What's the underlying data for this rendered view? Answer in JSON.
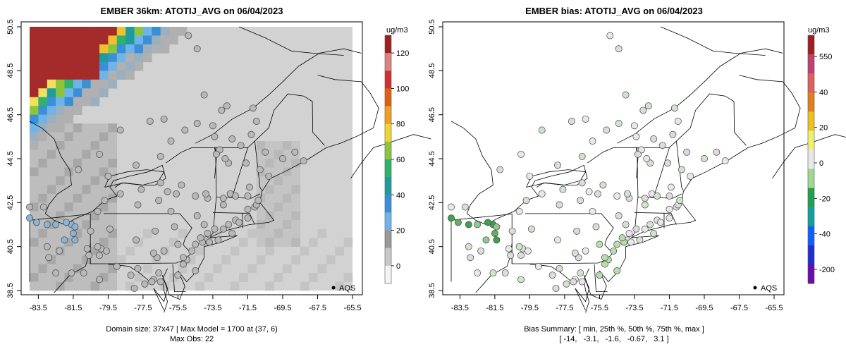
{
  "chart_data": [
    {
      "type": "heatmap",
      "title": "EMBER 36km: ATOTIJ_AVG on 06/04/2023",
      "x_ticks": [
        "-83.5",
        "-81.5",
        "-79.5",
        "-77.5",
        "-75.5",
        "-73.5",
        "-71.5",
        "-69.5",
        "-67.5",
        "-65.5"
      ],
      "y_ticks": [
        "38.5",
        "40.5",
        "42.5",
        "44.5",
        "46.5",
        "48.5",
        "50.5"
      ],
      "xlim": [
        -84.0,
        -65.5
      ],
      "ylim": [
        38.5,
        50.5
      ],
      "colorbar": {
        "unit": "ug/m3",
        "ticks": [
          "0",
          "20",
          "40",
          "60",
          "80",
          "100",
          "120"
        ],
        "range": [
          -10,
          130
        ],
        "colors": [
          "#f4f4f4",
          "#c8c8c8",
          "#999999",
          "#6fb4e8",
          "#3b8fd6",
          "#1c9c9c",
          "#2db36b",
          "#8cc43c",
          "#f0d430",
          "#f0a020",
          "#e06010",
          "#d03030",
          "#e08080",
          "#a02020"
        ]
      },
      "legend": "AQS",
      "footer_line1": "Domain size: 37x47 | Max Model = 1700 at (37, 6)",
      "footer_line2": "Max Obs: 22"
    },
    {
      "type": "scatter",
      "title": "EMBER bias: ATOTIJ_AVG on 06/04/2023",
      "x_ticks": [
        "-83.5",
        "-81.5",
        "-79.5",
        "-77.5",
        "-75.5",
        "-73.5",
        "-71.5",
        "-69.5",
        "-67.5",
        "-65.5"
      ],
      "y_ticks": [
        "38.5",
        "40.5",
        "42.5",
        "44.5",
        "46.5",
        "48.5",
        "50.5"
      ],
      "xlim": [
        -84.0,
        -65.5
      ],
      "ylim": [
        38.5,
        50.5
      ],
      "colorbar": {
        "unit": "ug/m3",
        "ticks": [
          "-200",
          "-40",
          "-20",
          "0",
          "20",
          "40",
          "550"
        ],
        "colors": [
          "#6a0dad",
          "#2030d0",
          "#1060ff",
          "#10a0a0",
          "#20a050",
          "#a0d890",
          "#e8e8e8",
          "#f0f070",
          "#f0c020",
          "#e08020",
          "#e06060",
          "#c04070",
          "#a02020"
        ]
      },
      "legend": "AQS",
      "footer_line1": "Bias Summary: [ min, 25th %, 50th %, 75th %, max ]",
      "footer_line2": "[ -14,   -3.1,   -1.6,   -0.67,   3.1 ]"
    }
  ],
  "sites": [
    [
      -74.9,
      50.1
    ],
    [
      -74.4,
      49.5
    ],
    [
      -74.0,
      47.4
    ],
    [
      -73.5,
      46.0
    ],
    [
      -73.0,
      46.7
    ],
    [
      -72.7,
      46.9
    ],
    [
      -73.4,
      45.5
    ],
    [
      -72.4,
      45.4
    ],
    [
      -71.2,
      46.8
    ],
    [
      -71.0,
      46.2
    ],
    [
      -71.9,
      45.1
    ],
    [
      -71.3,
      45.6
    ],
    [
      -73.1,
      44.9
    ],
    [
      -73.3,
      44.7
    ],
    [
      -72.6,
      44.3
    ],
    [
      -72.8,
      44.5
    ],
    [
      -71.6,
      44.3
    ],
    [
      -70.8,
      44.0
    ],
    [
      -70.3,
      43.7
    ],
    [
      -70.5,
      44.8
    ],
    [
      -69.5,
      44.5
    ],
    [
      -68.3,
      44.4
    ],
    [
      -68.8,
      44.8
    ],
    [
      -72.9,
      42.4
    ],
    [
      -72.5,
      42.9
    ],
    [
      -72.9,
      42.7
    ],
    [
      -72.2,
      42.8
    ],
    [
      -71.4,
      43.2
    ],
    [
      -71.5,
      42.8
    ],
    [
      -71.1,
      42.3
    ],
    [
      -71.5,
      42.2
    ],
    [
      -71.0,
      42.4
    ],
    [
      -70.9,
      42.6
    ],
    [
      -71.5,
      41.8
    ],
    [
      -72.2,
      41.7
    ],
    [
      -72.6,
      41.5
    ],
    [
      -72.9,
      41.3
    ],
    [
      -73.4,
      41.3
    ],
    [
      -72.4,
      41.1
    ],
    [
      -72.0,
      41.6
    ],
    [
      -73.8,
      42.7
    ],
    [
      -73.9,
      42.9
    ],
    [
      -74.5,
      42.8
    ],
    [
      -75.6,
      42.9
    ],
    [
      -75.3,
      43.3
    ],
    [
      -76.1,
      43.0
    ],
    [
      -76.5,
      43.4
    ],
    [
      -77.6,
      43.1
    ],
    [
      -78.8,
      42.9
    ],
    [
      -77.8,
      42.4
    ],
    [
      -76.6,
      42.6
    ],
    [
      -75.9,
      42.1
    ],
    [
      -74.4,
      41.9
    ],
    [
      -74.0,
      41.5
    ],
    [
      -73.8,
      41.1
    ],
    [
      -73.9,
      40.8
    ],
    [
      -74.1,
      40.7
    ],
    [
      -73.7,
      40.7
    ],
    [
      -73.2,
      40.8
    ],
    [
      -74.2,
      40.9
    ],
    [
      -74.5,
      40.6
    ],
    [
      -74.7,
      40.3
    ],
    [
      -75.0,
      39.9
    ],
    [
      -74.5,
      39.4
    ],
    [
      -75.2,
      39.7
    ],
    [
      -75.5,
      39.2
    ],
    [
      -75.2,
      40.0
    ],
    [
      -75.5,
      40.6
    ],
    [
      -75.7,
      41.4
    ],
    [
      -76.3,
      40.3
    ],
    [
      -76.7,
      40.0
    ],
    [
      -76.9,
      40.2
    ],
    [
      -77.9,
      40.8
    ],
    [
      -76.8,
      41.2
    ],
    [
      -76.6,
      39.3
    ],
    [
      -76.9,
      39.0
    ],
    [
      -77.0,
      38.9
    ],
    [
      -77.4,
      38.8
    ],
    [
      -76.5,
      38.9
    ],
    [
      -78.2,
      39.2
    ],
    [
      -77.8,
      39.5
    ],
    [
      -79.0,
      39.6
    ],
    [
      -79.9,
      40.4
    ],
    [
      -80.1,
      40.5
    ],
    [
      -79.6,
      40.3
    ],
    [
      -80.0,
      40.1
    ],
    [
      -79.4,
      41.3
    ],
    [
      -80.1,
      42.1
    ],
    [
      -80.5,
      41.2
    ],
    [
      -81.6,
      41.5
    ],
    [
      -81.4,
      41.4
    ],
    [
      -81.5,
      41.1
    ],
    [
      -81.9,
      41.6
    ],
    [
      -82.5,
      41.5
    ],
    [
      -83.6,
      41.6
    ],
    [
      -83.0,
      41.5
    ],
    [
      -84.0,
      42.3
    ],
    [
      -83.2,
      42.3
    ],
    [
      -84.0,
      41.8
    ],
    [
      -82.0,
      40.8
    ],
    [
      -82.9,
      40.0
    ],
    [
      -83.0,
      40.5
    ],
    [
      -82.5,
      39.3
    ],
    [
      -82.3,
      40.3
    ],
    [
      -81.4,
      40.8
    ],
    [
      -80.7,
      40.4
    ],
    [
      -80.6,
      40.1
    ],
    [
      -81.6,
      39.3
    ],
    [
      -81.6,
      38.4
    ],
    [
      -80.9,
      39.3
    ],
    [
      -80.0,
      39.0
    ],
    [
      -79.3,
      38.4
    ],
    [
      -78.0,
      38.6
    ],
    [
      -79.7,
      42.6
    ],
    [
      -80.0,
      44.7
    ],
    [
      -81.2,
      44.0
    ],
    [
      -78.8,
      45.8
    ],
    [
      -79.5,
      43.7
    ],
    [
      -77.9,
      44.2
    ],
    [
      -76.5,
      44.6
    ],
    [
      -75.9,
      45.3
    ],
    [
      -75.1,
      45.8
    ],
    [
      -74.4,
      46.1
    ],
    [
      -76.3,
      46.3
    ],
    [
      -77.1,
      46.2
    ]
  ],
  "right_site_colors": [
    "#e8e8e8",
    "#dcdcdc",
    "#d0e4cc",
    "#b8dcb0",
    "#90c890",
    "#60b060",
    "#40a050"
  ]
}
